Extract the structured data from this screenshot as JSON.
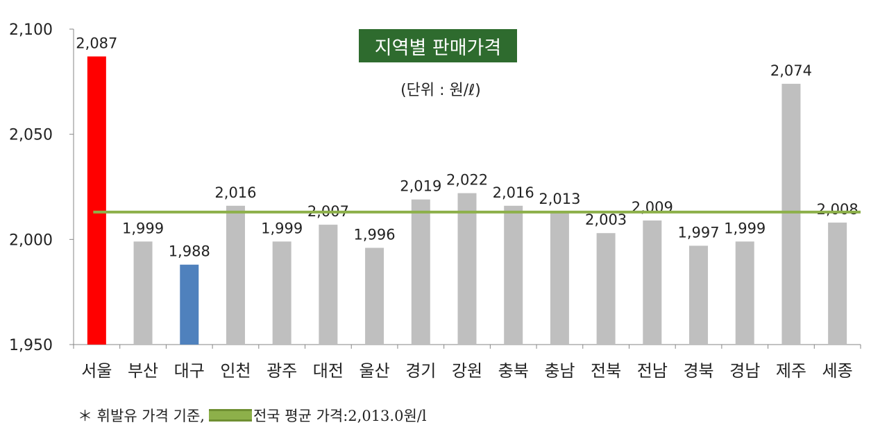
{
  "chart_data": {
    "type": "bar",
    "title": "지역별 판매가격",
    "subtitle": "(단위 : 원/ℓ)",
    "categories": [
      "서울",
      "부산",
      "대구",
      "인천",
      "광주",
      "대전",
      "울산",
      "경기",
      "강원",
      "충북",
      "충남",
      "전북",
      "전남",
      "경북",
      "경남",
      "제주",
      "세종"
    ],
    "values": [
      2087,
      1999,
      1988,
      2016,
      1999,
      2007,
      1996,
      2019,
      2022,
      2016,
      2013,
      2003,
      2009,
      1997,
      1999,
      2074,
      2008
    ],
    "value_labels": [
      "2,087",
      "1,999",
      "1,988",
      "2,016",
      "1,999",
      "2,007",
      "1,996",
      "2,019",
      "2,022",
      "2,016",
      "2,013",
      "2,003",
      "2,009",
      "1,997",
      "1,999",
      "2,074",
      "2,008"
    ],
    "bar_colors": [
      "#ff0000",
      "#bfbfbf",
      "#4f81bd",
      "#bfbfbf",
      "#bfbfbf",
      "#bfbfbf",
      "#bfbfbf",
      "#bfbfbf",
      "#bfbfbf",
      "#bfbfbf",
      "#bfbfbf",
      "#bfbfbf",
      "#bfbfbf",
      "#bfbfbf",
      "#bfbfbf",
      "#bfbfbf",
      "#bfbfbf"
    ],
    "ylim": [
      1950,
      2100
    ],
    "yticks": [
      1950,
      2000,
      2050,
      2100
    ],
    "ytick_labels": [
      "1,950",
      "2,000",
      "2,050",
      "2,100"
    ],
    "average_line": {
      "value": 2013.0,
      "color": "#8db04a"
    },
    "grid": false,
    "xlabel": "",
    "ylabel": ""
  },
  "footnote": {
    "prefix": "＊ 휘발유 가격 기준,",
    "legend_label": "전국 평균 가격:2,013.0원/l"
  }
}
